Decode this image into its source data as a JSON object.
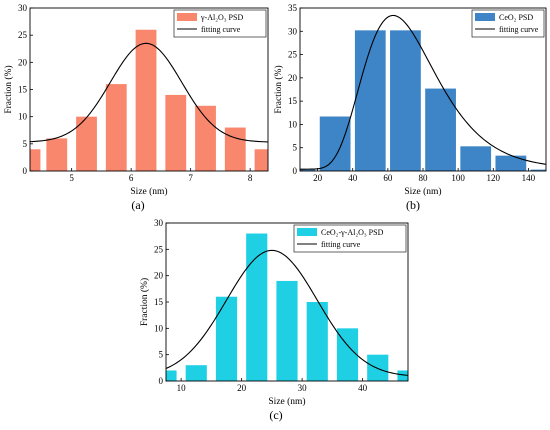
{
  "chart_data": [
    {
      "type": "bar",
      "panel_label": "(a)",
      "xlabel": "Size (nm)",
      "ylabel": "Fraction (%)",
      "xlim": [
        4.3,
        8.3
      ],
      "ylim": [
        0,
        30
      ],
      "xticks": [
        5,
        6,
        7,
        8
      ],
      "yticks": [
        0,
        5,
        10,
        15,
        20,
        25,
        30
      ],
      "bar_width": 0.35,
      "bar_color": "#F9876E",
      "curve_color": "#000000",
      "legend_position": "top-right",
      "legend_bar_label": "γ-Al₂O₃ PSD",
      "legend_curve_label": "fitting curve",
      "x": [
        4.3,
        4.75,
        5.25,
        5.75,
        6.25,
        6.75,
        7.25,
        7.75,
        8.25
      ],
      "values": [
        4,
        6,
        10,
        16,
        26,
        14,
        12,
        8,
        4
      ],
      "fit": {
        "model": "gaussian",
        "baseline": 5.3,
        "amplitude": 18.2,
        "center": 6.25,
        "sigma": 0.6
      }
    },
    {
      "type": "bar",
      "panel_label": "(b)",
      "xlabel": "Size (nm)",
      "ylabel": "Fraction (%)",
      "xlim": [
        10,
        150
      ],
      "ylim": [
        0,
        35
      ],
      "xticks": [
        20,
        40,
        60,
        80,
        100,
        120,
        140
      ],
      "yticks": [
        0,
        5,
        10,
        15,
        20,
        25,
        30,
        35
      ],
      "bar_width": 17.5,
      "bar_color": "#3D85C6",
      "curve_color": "#000000",
      "legend_position": "top-right",
      "legend_bar_label": "CeO₂ PSD",
      "legend_curve_label": "fitting curve",
      "x": [
        10,
        30,
        50,
        70,
        90,
        110,
        130,
        150
      ],
      "values": [
        0.3,
        11.7,
        30.2,
        30.2,
        17.7,
        5.3,
        3.3,
        0.3
      ],
      "fit": {
        "model": "lognormal",
        "baseline": 0.4,
        "amplitude": 33,
        "mode": 63,
        "sigma_ln": 0.33
      }
    },
    {
      "type": "bar",
      "panel_label": "(c)",
      "xlabel": "Size (nm)",
      "ylabel": "Fraction (%)",
      "xlim": [
        7.5,
        47.5
      ],
      "ylim": [
        0,
        30
      ],
      "xticks": [
        10,
        20,
        30,
        40
      ],
      "yticks": [
        0,
        5,
        10,
        15,
        20,
        25,
        30
      ],
      "bar_width": 3.5,
      "bar_color": "#1FD0E4",
      "curve_color": "#000000",
      "legend_position": "top-right",
      "legend_bar_label": "CeO₂-γ-Al₂O₃ PSD",
      "legend_curve_label": "fitting curve",
      "x": [
        7.5,
        12.5,
        17.5,
        22.5,
        27.5,
        32.5,
        37.5,
        42.5,
        47.5
      ],
      "values": [
        2,
        3,
        16,
        28,
        19,
        15,
        10,
        5,
        2
      ],
      "fit": {
        "model": "gaussian",
        "baseline": 0.8,
        "amplitude": 24,
        "center": 25,
        "sigma": 7.5
      }
    }
  ]
}
